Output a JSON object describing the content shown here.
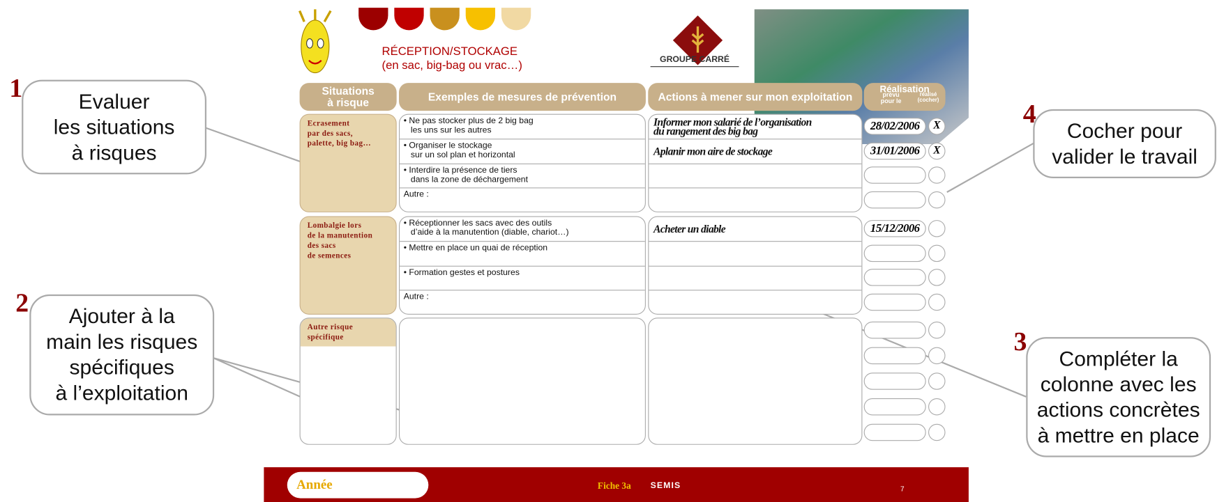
{
  "header": {
    "title": "RÉCEPTION/STOCKAGE",
    "subtitle": "(en sac, big-bag ou vrac…)",
    "logo": "GROUPE CARRÉ"
  },
  "table": {
    "headers": [
      "Situations\nà risque",
      "Exemples de mesures de prévention",
      "Actions à mener sur mon exploitation",
      "Réalisation"
    ],
    "subheaders": [
      "prévu\npour le",
      "réalisé\n(cocher)"
    ],
    "sections": [
      {
        "risk": "Ecrasement\npar des sacs,\npalette, big bag…",
        "rows": [
          {
            "measure": "• Ne pas stocker plus de 2 big bag\n   les uns sur les autres",
            "action": "Informer mon salarié de l’organisation\ndu rangement des big bag",
            "date": "28/02/2006",
            "done": "X"
          },
          {
            "measure": "• Organiser le stockage\n   sur un sol plan et horizontal",
            "action": "Aplanir mon aire de stockage",
            "date": "31/01/2006",
            "done": "X"
          },
          {
            "measure": "• Interdire la présence de tiers\n   dans la zone de déchargement"
          },
          {
            "measure": "Autre :"
          }
        ]
      },
      {
        "risk": "Lombalgie lors\nde la manutention\ndes sacs\nde semences",
        "rows": [
          {
            "measure": "• Réceptionner les sacs avec des outils\n   d’aide à la manutention (diable, chariot…)",
            "action": "Acheter un diable",
            "date": "15/12/2006"
          },
          {
            "measure": "• Mettre en place un quai de réception"
          },
          {
            "measure": "• Formation gestes et postures"
          },
          {
            "measure": "Autre :"
          }
        ]
      },
      {
        "risk": "Autre risque\nspécifique",
        "rows": [
          {},
          {},
          {},
          {},
          {}
        ]
      }
    ]
  },
  "callouts": [
    {
      "number": "1",
      "text": "Evaluer\nles situations\nà risques"
    },
    {
      "number": "2",
      "text": "Ajouter à la\nmain les risques\nspécifiques\nà l’exploitation"
    },
    {
      "number": "3",
      "text": "Compléter la\ncolonne avec les\nactions concrètes\nà mettre en place"
    },
    {
      "number": "4",
      "text": "Cocher pour\nvalider le travail"
    }
  ],
  "footer": {
    "year_label": "Année",
    "sheet": "Fiche 3a",
    "topic": "SEMIS",
    "page": "7"
  }
}
